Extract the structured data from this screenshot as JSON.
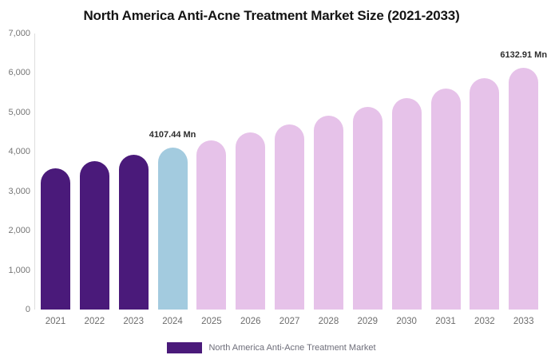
{
  "chart_data": {
    "type": "bar",
    "title": "North America Anti-Acne Treatment Market Size (2021-2033)",
    "unit": "Mn",
    "categories": [
      "2021",
      "2022",
      "2023",
      "2024",
      "2025",
      "2026",
      "2027",
      "2028",
      "2029",
      "2030",
      "2031",
      "2032",
      "2033"
    ],
    "values": [
      3590,
      3755,
      3925,
      4107.44,
      4294,
      4490,
      4694,
      4908,
      5131,
      5364,
      5608,
      5864,
      6132.91
    ],
    "color_roles": [
      "historical",
      "historical",
      "historical",
      "current",
      "forecast",
      "forecast",
      "forecast",
      "forecast",
      "forecast",
      "forecast",
      "forecast",
      "forecast",
      "forecast"
    ],
    "colors": {
      "historical": "#4a1a7a",
      "current": "#a3cbdf",
      "forecast": "#e6c2e9"
    },
    "point_labels": [
      {
        "category": "2024",
        "text": "4107.44 Mn"
      },
      {
        "category": "2033",
        "text": "6132.91 Mn"
      }
    ],
    "ylim": [
      0,
      7000
    ],
    "y_ticks": [
      0,
      1000,
      2000,
      3000,
      4000,
      5000,
      6000,
      7000
    ],
    "y_tick_labels": [
      "0",
      "1,000",
      "2,000",
      "3,000",
      "4,000",
      "5,000",
      "6,000",
      "7,000"
    ],
    "grid": false,
    "xlabel": "",
    "ylabel": "",
    "legend": {
      "position": "bottom",
      "label": "North America Anti-Acne Treatment Market",
      "swatch_color": "#4a1a7a"
    }
  }
}
